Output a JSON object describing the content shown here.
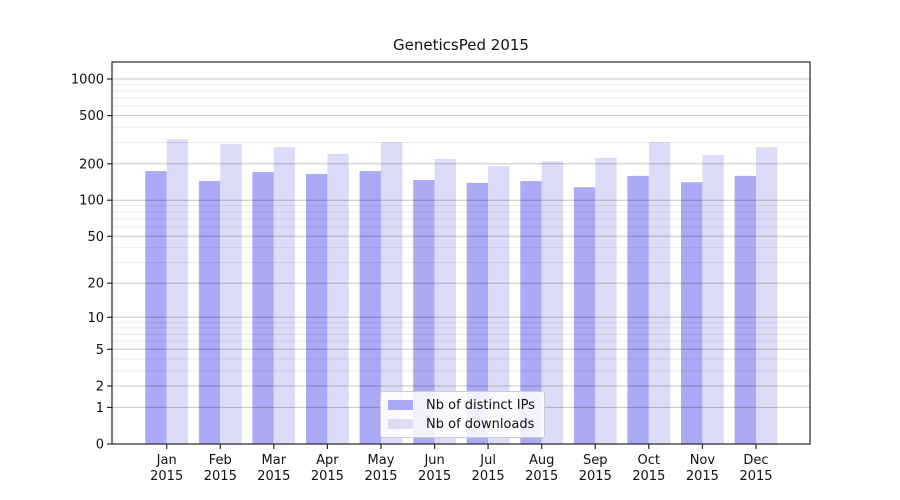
{
  "window": {
    "title": "GeneticsPed 2015"
  },
  "chart_data": {
    "type": "bar",
    "title": "GeneticsPed 2015",
    "xlabel": "",
    "ylabel": "",
    "categories": [
      "Jan",
      "Feb",
      "Mar",
      "Apr",
      "May",
      "Jun",
      "Jul",
      "Aug",
      "Sep",
      "Oct",
      "Nov",
      "Dec"
    ],
    "category_year_label": "2015",
    "series": [
      {
        "name": "Nb of distinct IPs",
        "color": "#aaaaf6",
        "values": [
          174,
          144,
          171,
          165,
          174,
          147,
          139,
          144,
          128,
          159,
          141,
          159
        ]
      },
      {
        "name": "Nb of downloads",
        "color": "#dcdcf8",
        "values": [
          320,
          291,
          275,
          241,
          302,
          219,
          191,
          210,
          224,
          302,
          236,
          275
        ]
      }
    ],
    "yscale": "log1p",
    "ylim": [
      0,
      1355
    ],
    "yticks": [
      0,
      1,
      2,
      5,
      10,
      20,
      50,
      100,
      200,
      500,
      1000
    ],
    "yticks_minor": [
      3,
      4,
      6,
      7,
      8,
      9,
      30,
      40,
      60,
      70,
      80,
      90,
      300,
      400,
      600,
      700,
      800,
      900
    ],
    "grid": true,
    "legend_position": "lower center inside",
    "colors": {
      "major_grid": "rgba(0,0,0,0.22)",
      "minor_grid": "rgba(0,0,0,0.08)",
      "spine": "#262626",
      "tick_label": "#111111"
    }
  }
}
